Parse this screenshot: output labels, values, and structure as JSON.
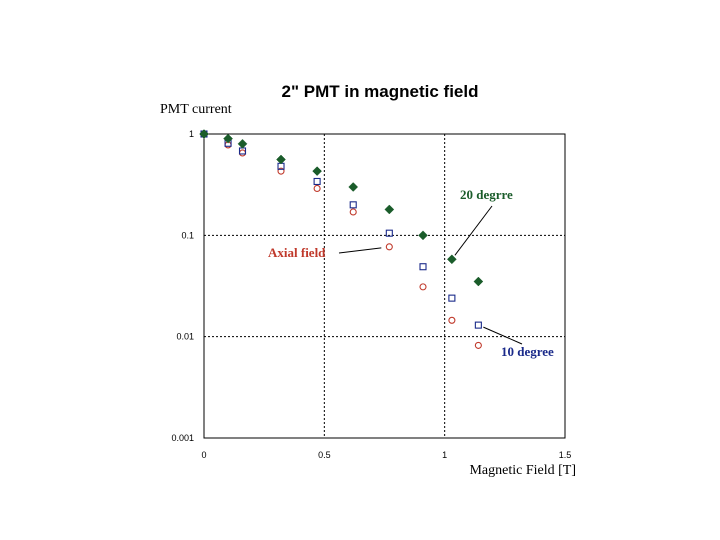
{
  "chart_data": {
    "type": "scatter",
    "title": "2\" PMT in magnetic field",
    "ylabel": "PMT current",
    "xlabel": "Magnetic Field [T]",
    "xlim": [
      0,
      1.5
    ],
    "ylim": [
      0.001,
      1
    ],
    "yscale": "log",
    "grid": true,
    "x_ticks": [
      {
        "value": 0,
        "label": "0"
      },
      {
        "value": 0.5,
        "label": "0.5"
      },
      {
        "value": 1,
        "label": "1"
      },
      {
        "value": 1.5,
        "label": "1.5"
      }
    ],
    "y_ticks": [
      {
        "value": 1,
        "label": "1"
      },
      {
        "value": 0.1,
        "label": "0.1"
      },
      {
        "value": 0.01,
        "label": "0.01"
      },
      {
        "value": 0.001,
        "label": "0.001"
      }
    ],
    "series": [
      {
        "name": "20 degrre",
        "marker": "diamond",
        "color": "#1a5c2a",
        "x": [
          0,
          0.1,
          0.16,
          0.32,
          0.47,
          0.62,
          0.77,
          0.91,
          1.03,
          1.14
        ],
        "y": [
          1.0,
          0.9,
          0.8,
          0.56,
          0.43,
          0.3,
          0.18,
          0.1,
          0.058,
          0.035
        ]
      },
      {
        "name": "10 degree",
        "marker": "square",
        "color": "#1a2a8a",
        "x": [
          0,
          0.1,
          0.16,
          0.32,
          0.47,
          0.62,
          0.77,
          0.91,
          1.03,
          1.14
        ],
        "y": [
          1.0,
          0.81,
          0.68,
          0.48,
          0.34,
          0.2,
          0.105,
          0.049,
          0.024,
          0.013
        ]
      },
      {
        "name": "Axial field",
        "marker": "circle",
        "color": "#c0392b",
        "x": [
          0,
          0.1,
          0.16,
          0.32,
          0.47,
          0.62,
          0.77,
          0.91,
          1.03,
          1.14
        ],
        "y": [
          1.0,
          0.78,
          0.65,
          0.43,
          0.29,
          0.17,
          0.077,
          0.031,
          0.0145,
          0.0082
        ]
      }
    ],
    "annotations": [
      {
        "text": "20 degrre",
        "color": "#1a5c2a",
        "points_to": {
          "x": 1.03,
          "y": 0.058
        }
      },
      {
        "text": "Axial field",
        "color": "#c0392b",
        "points_to": {
          "x": 0.77,
          "y": 0.077
        }
      },
      {
        "text": "10 degree",
        "color": "#1a2a8a",
        "points_to": {
          "x": 1.14,
          "y": 0.013
        }
      }
    ]
  }
}
